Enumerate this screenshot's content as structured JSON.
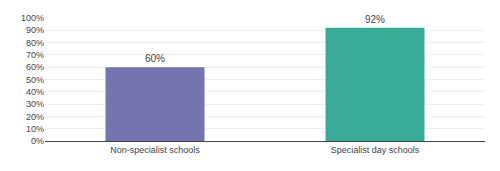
{
  "chart_data": {
    "type": "bar",
    "categories": [
      "Non-specialist schools",
      "Specialist day schools"
    ],
    "values": [
      60,
      92
    ],
    "value_labels": [
      "60%",
      "92%"
    ],
    "colors": [
      "#7474b0",
      "#3aab96"
    ],
    "ylim": [
      0,
      100
    ],
    "yticks": [
      {
        "value": 0,
        "label": "0%"
      },
      {
        "value": 10,
        "label": "10%"
      },
      {
        "value": 20,
        "label": "20%"
      },
      {
        "value": 30,
        "label": "30%"
      },
      {
        "value": 40,
        "label": "40%"
      },
      {
        "value": 50,
        "label": "50%"
      },
      {
        "value": 60,
        "label": "60%"
      },
      {
        "value": 70,
        "label": "70%"
      },
      {
        "value": 80,
        "label": "80%"
      },
      {
        "value": 90,
        "label": "90%"
      },
      {
        "value": 100,
        "label": "100%"
      }
    ],
    "grid": true,
    "data_labels": true
  }
}
